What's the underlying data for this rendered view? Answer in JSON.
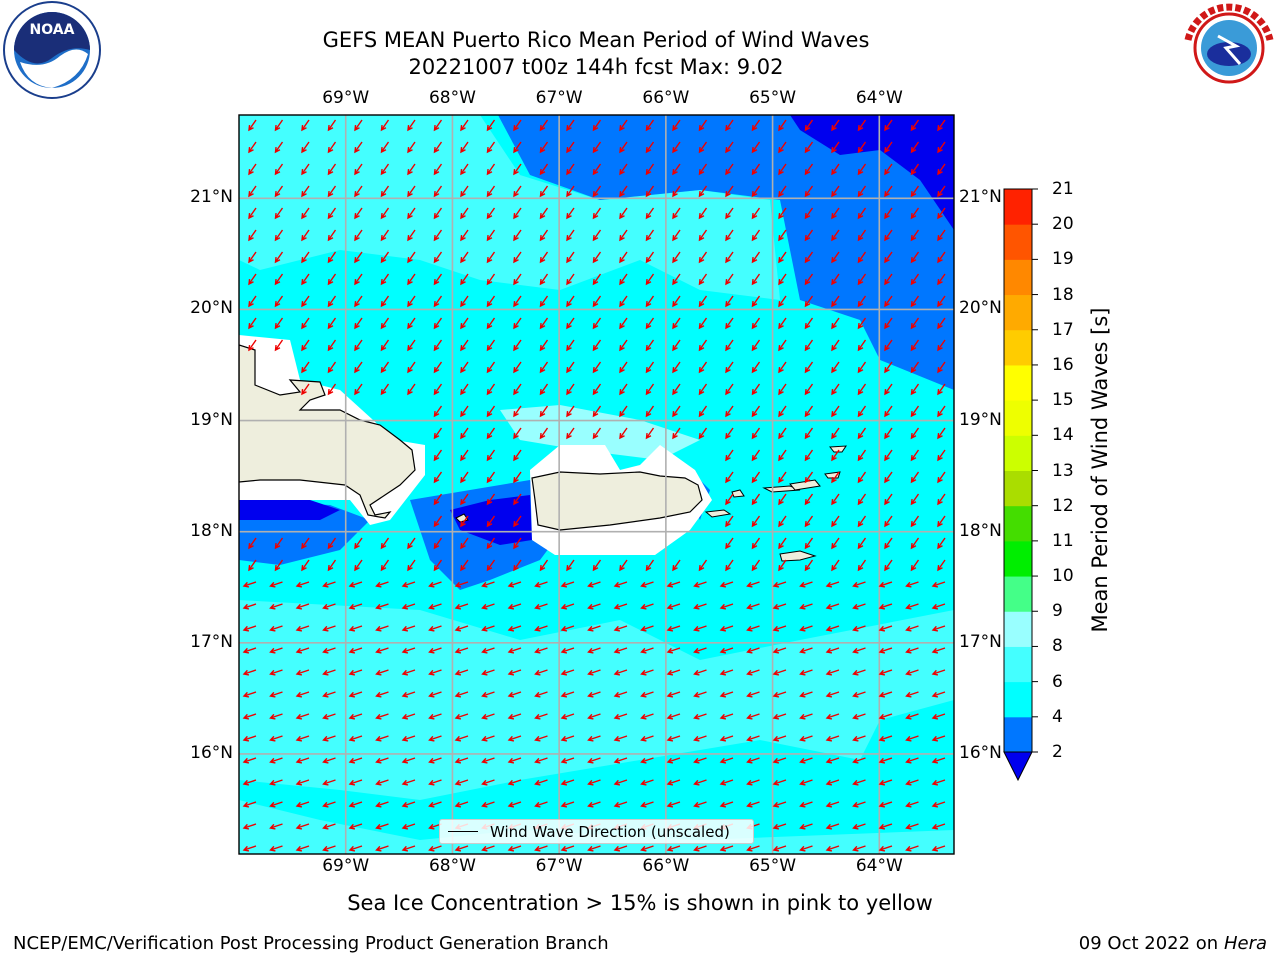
{
  "header": {
    "title_line1": "GEFS MEAN Puerto Rico Mean Period of Wind Waves",
    "title_line2": "20221007 t00z 144h fcst   Max: 9.02"
  },
  "logos": {
    "left": "noaa-logo",
    "right": "nws-logo"
  },
  "axes": {
    "lon_labels": [
      "69°W",
      "68°W",
      "67°W",
      "66°W",
      "65°W",
      "64°W"
    ],
    "lat_labels": [
      "21°N",
      "20°N",
      "19°N",
      "18°N",
      "17°N",
      "16°N"
    ]
  },
  "legend": {
    "label": "Wind Wave Direction (unscaled)"
  },
  "colorbar": {
    "title": "Mean Period of Wind Waves [s]",
    "ticks": [
      "21",
      "20",
      "19",
      "18",
      "17",
      "16",
      "15",
      "14",
      "13",
      "12",
      "11",
      "10",
      "9",
      "8",
      "6",
      "4",
      "2"
    ],
    "colors": [
      "#0000ee",
      "#0077ff",
      "#00ffff",
      "#44ffff",
      "#99ffff",
      "#44ff88",
      "#00ee00",
      "#44dd00",
      "#aadd00",
      "#ccff00",
      "#eeff00",
      "#ffff00",
      "#ffcc00",
      "#ffaa00",
      "#ff8800",
      "#ff5500",
      "#ff2200",
      "#ff0000"
    ]
  },
  "captions": {
    "sea_ice": "Sea Ice Concentration > 15% is shown in pink to yellow",
    "producer": "NCEP/EMC/Verification Post Processing Product Generation Branch",
    "date": "09 Oct 2022 on ",
    "machine": "Hera"
  },
  "chart_data": {
    "type": "heatmap",
    "title": "GEFS MEAN Puerto Rico Mean Period of Wind Waves",
    "subtitle": "20221007 t00z 144h fcst   Max: 9.02",
    "x_ticks": [
      -69,
      -68,
      -67,
      -66,
      -65,
      -64
    ],
    "y_ticks": [
      21,
      20,
      19,
      18,
      17,
      16
    ],
    "x_range": [
      -70,
      -63.3
    ],
    "y_range": [
      15.1,
      21.75
    ],
    "colorbar_levels": [
      2,
      4,
      6,
      8,
      9,
      10,
      11,
      12,
      13,
      14,
      15,
      16,
      17,
      18,
      19,
      20,
      21
    ],
    "colorbar_label": "Mean Period of Wind Waves [s]",
    "max_value": 9.02,
    "legend": "Wind Wave Direction (unscaled)",
    "grid": true
  }
}
